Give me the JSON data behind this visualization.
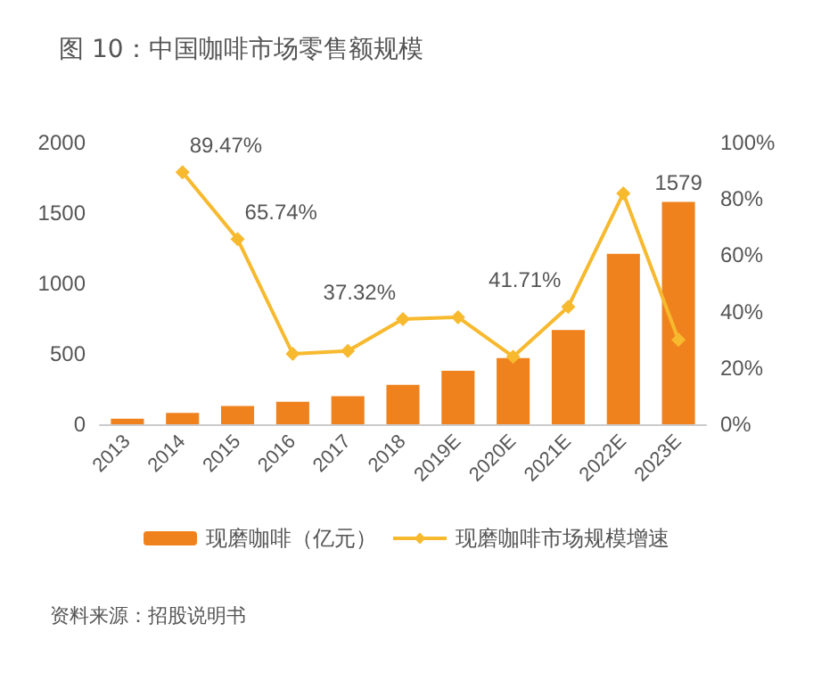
{
  "chart_data": {
    "type": "bar",
    "title": "图 10：中国咖啡市场零售额规模",
    "categories": [
      "2013",
      "2014",
      "2015",
      "2016",
      "2017",
      "2018",
      "2019E",
      "2020E",
      "2021E",
      "2022E",
      "2023E"
    ],
    "series": [
      {
        "name": "现磨咖啡（亿元）",
        "color": "#f0821e",
        "values": [
          40,
          80,
          130,
          160,
          200,
          280,
          380,
          470,
          670,
          1210,
          1579
        ],
        "value_labels": [
          null,
          null,
          null,
          null,
          null,
          null,
          null,
          null,
          null,
          null,
          "1579"
        ]
      },
      {
        "name": "现磨咖啡市场规模增速",
        "type": "line",
        "axis": "y2",
        "color": "#f7b92e",
        "marker": "diamond",
        "values": [
          null,
          89.47,
          65.74,
          25,
          26,
          37.32,
          38,
          24,
          41.71,
          82,
          30
        ],
        "value_labels": [
          null,
          "89.47%",
          "65.74%",
          null,
          null,
          "37.32%",
          null,
          null,
          "41.71%",
          null,
          null
        ]
      }
    ],
    "ylim": [
      0,
      2000
    ],
    "yticks": [
      0,
      500,
      1000,
      1500,
      2000
    ],
    "y2lim": [
      0,
      100
    ],
    "y2ticks": [
      {
        "value": 0,
        "label": "0%"
      },
      {
        "value": 20,
        "label": "20%"
      },
      {
        "value": 40,
        "label": "40%"
      },
      {
        "value": 60,
        "label": "60%"
      },
      {
        "value": 80,
        "label": "80%"
      },
      {
        "value": 100,
        "label": "100%"
      }
    ],
    "grid": false,
    "legend": "bottom",
    "annotations": [
      "资料来源：招股说明书"
    ]
  }
}
